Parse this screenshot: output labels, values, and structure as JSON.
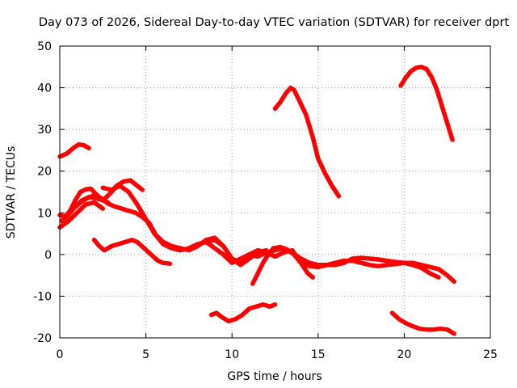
{
  "chart_data": {
    "type": "line",
    "title": "Day 073 of 2026, Sidereal Day-to-day VTEC variation (SDTVAR) for receiver dprt",
    "xlabel": "GPS time / hours",
    "ylabel": "SDTVAR / TECUs",
    "xlim": [
      0,
      25
    ],
    "ylim": [
      -20,
      50
    ],
    "xticks": [
      0,
      5,
      10,
      15,
      20,
      25
    ],
    "yticks": [
      -20,
      -10,
      0,
      10,
      20,
      30,
      40,
      50
    ],
    "xtick_labels": [
      "0",
      "5",
      "10",
      "15",
      "20",
      "25"
    ],
    "ytick_labels": [
      "-20",
      "-10",
      "0",
      "10",
      "20",
      "30",
      "40",
      "50"
    ],
    "grid": true,
    "color": "#ff0000",
    "series": [
      {
        "name": "s1",
        "x": [
          0,
          0.4,
          0.8,
          1.1,
          1.4,
          1.7
        ],
        "y": [
          23.5,
          24.2,
          25.6,
          26.4,
          26.2,
          25.5
        ]
      },
      {
        "name": "s2",
        "x": [
          0,
          0.3,
          0.6,
          0.9,
          1.2,
          1.5,
          1.8,
          2.1,
          2.5,
          2.8
        ],
        "y": [
          9.5,
          9.0,
          10.5,
          13.0,
          15.0,
          15.6,
          15.8,
          14.5,
          13.0,
          12.5
        ]
      },
      {
        "name": "s3",
        "x": [
          0.1,
          0.5,
          0.9,
          1.3,
          1.7,
          2.1,
          2.5,
          2.9,
          3.3,
          3.7,
          4.1,
          4.5,
          4.8
        ],
        "y": [
          8.0,
          9.5,
          11.5,
          13.0,
          13.8,
          13.5,
          13.0,
          14.5,
          16.5,
          17.5,
          17.8,
          16.5,
          15.5
        ]
      },
      {
        "name": "s4",
        "x": [
          0,
          0.5,
          1.0,
          1.5,
          2.0,
          2.5
        ],
        "y": [
          6.5,
          8.0,
          10.0,
          12.0,
          12.5,
          11.0
        ]
      },
      {
        "name": "s5",
        "x": [
          0.8,
          1.2,
          1.6,
          2.0,
          2.4,
          2.8,
          3.2,
          3.6,
          4.0,
          4.4,
          4.8,
          5.2,
          5.6,
          6.0,
          6.5,
          7.0,
          7.5,
          8.0,
          8.5,
          9.0,
          9.5,
          10.0,
          10.5,
          11.0,
          11.5,
          12.0,
          12.5,
          13.0,
          13.5,
          14.0,
          14.5,
          15.0,
          15.5,
          16.0,
          16.5,
          17.0,
          17.5,
          18.0,
          18.5,
          19.0,
          19.5,
          20.0,
          20.5,
          21.0,
          21.5,
          22.0
        ],
        "y": [
          11.0,
          12.5,
          13.5,
          14.2,
          13.5,
          12.2,
          11.5,
          11.0,
          10.5,
          10.0,
          9.0,
          7.5,
          4.5,
          2.5,
          1.5,
          1.0,
          1.5,
          2.5,
          3.0,
          1.5,
          0.0,
          -2.0,
          -1.0,
          0.0,
          -0.5,
          0.5,
          1.0,
          1.5,
          0.5,
          -1.0,
          -2.0,
          -2.5,
          -2.5,
          -2.0,
          -1.5,
          -1.5,
          -2.0,
          -2.5,
          -2.8,
          -2.5,
          -2.3,
          -2.0,
          -2.5,
          -3.2,
          -4.5,
          -5.5
        ]
      },
      {
        "name": "s6",
        "x": [
          2.0,
          2.3,
          2.6,
          3.0,
          3.4,
          3.8,
          4.2,
          4.5,
          4.9,
          5.3,
          5.7,
          6.0,
          6.4
        ],
        "y": [
          3.5,
          2.0,
          1.0,
          2.0,
          2.5,
          3.0,
          3.5,
          3.0,
          1.5,
          0.0,
          -1.5,
          -2.0,
          -2.2
        ]
      },
      {
        "name": "s7",
        "x": [
          2.5,
          3.0,
          3.5,
          4.0,
          4.5,
          5.0,
          5.5,
          6.0,
          6.5,
          7.0,
          7.5,
          8.0,
          8.5,
          9.0,
          9.5,
          10.0,
          10.5,
          11.0,
          11.5,
          12.0
        ],
        "y": [
          16.0,
          15.5,
          16.5,
          15.0,
          12.0,
          8.5,
          5.0,
          3.0,
          2.0,
          1.5,
          1.0,
          2.0,
          3.5,
          4.0,
          2.0,
          -1.0,
          -2.5,
          -1.0,
          0.5,
          1.0
        ]
      },
      {
        "name": "s8",
        "x": [
          8.5,
          9.0,
          9.5,
          10.0,
          10.5,
          11.0,
          11.5,
          12.0,
          12.5,
          13.0,
          13.5,
          14.0,
          14.5,
          15.0,
          15.5,
          16.0,
          16.5,
          17.0,
          17.5,
          18.0,
          18.5,
          19.0,
          19.5,
          20.0,
          20.5,
          21.0,
          21.5,
          22.0,
          22.5,
          22.9
        ],
        "y": [
          3.0,
          3.5,
          2.0,
          -1.0,
          -2.0,
          0.0,
          1.0,
          0.5,
          -0.5,
          0.5,
          1.0,
          -2.0,
          -2.8,
          -3.0,
          -2.5,
          -2.5,
          -2.0,
          -1.0,
          -0.8,
          -1.0,
          -1.2,
          -1.5,
          -1.8,
          -2.0,
          -2.0,
          -2.5,
          -3.0,
          -3.5,
          -5.0,
          -6.5
        ]
      },
      {
        "name": "s9",
        "x": [
          11.2,
          11.5,
          11.8,
          12.1,
          12.4,
          12.8,
          13.2,
          13.6,
          14.0,
          14.4,
          14.7
        ],
        "y": [
          -7.0,
          -4.5,
          -2.0,
          0.0,
          1.5,
          1.8,
          1.2,
          0.0,
          -2.0,
          -4.5,
          -5.5
        ]
      },
      {
        "name": "s10",
        "x": [
          12.5,
          12.8,
          13.1,
          13.4,
          13.6,
          13.9,
          14.3,
          14.7,
          15.0,
          15.4,
          15.8,
          16.2
        ],
        "y": [
          35.0,
          36.5,
          38.5,
          40.0,
          39.5,
          37.0,
          33.5,
          28.0,
          23.0,
          19.5,
          16.5,
          14.0
        ]
      },
      {
        "name": "s11",
        "x": [
          19.8,
          20.1,
          20.4,
          20.7,
          21.0,
          21.3,
          21.6,
          21.9,
          22.2,
          22.5,
          22.8
        ],
        "y": [
          40.5,
          42.5,
          44.0,
          44.8,
          45.0,
          44.5,
          42.5,
          39.5,
          35.5,
          31.5,
          27.5
        ]
      },
      {
        "name": "s12",
        "x": [
          8.8,
          9.1,
          9.4,
          9.8,
          10.2,
          10.6,
          11.0,
          11.4,
          11.8,
          12.2,
          12.5
        ],
        "y": [
          -14.5,
          -14.0,
          -15.0,
          -16.0,
          -15.5,
          -14.5,
          -13.0,
          -12.5,
          -12.0,
          -12.5,
          -12.0
        ]
      },
      {
        "name": "s13",
        "x": [
          19.3,
          19.7,
          20.1,
          20.5,
          20.9,
          21.3,
          21.7,
          22.1,
          22.5,
          22.9
        ],
        "y": [
          -14.0,
          -15.5,
          -16.5,
          -17.2,
          -17.8,
          -18.0,
          -18.0,
          -17.8,
          -18.0,
          -19.0
        ]
      }
    ]
  }
}
